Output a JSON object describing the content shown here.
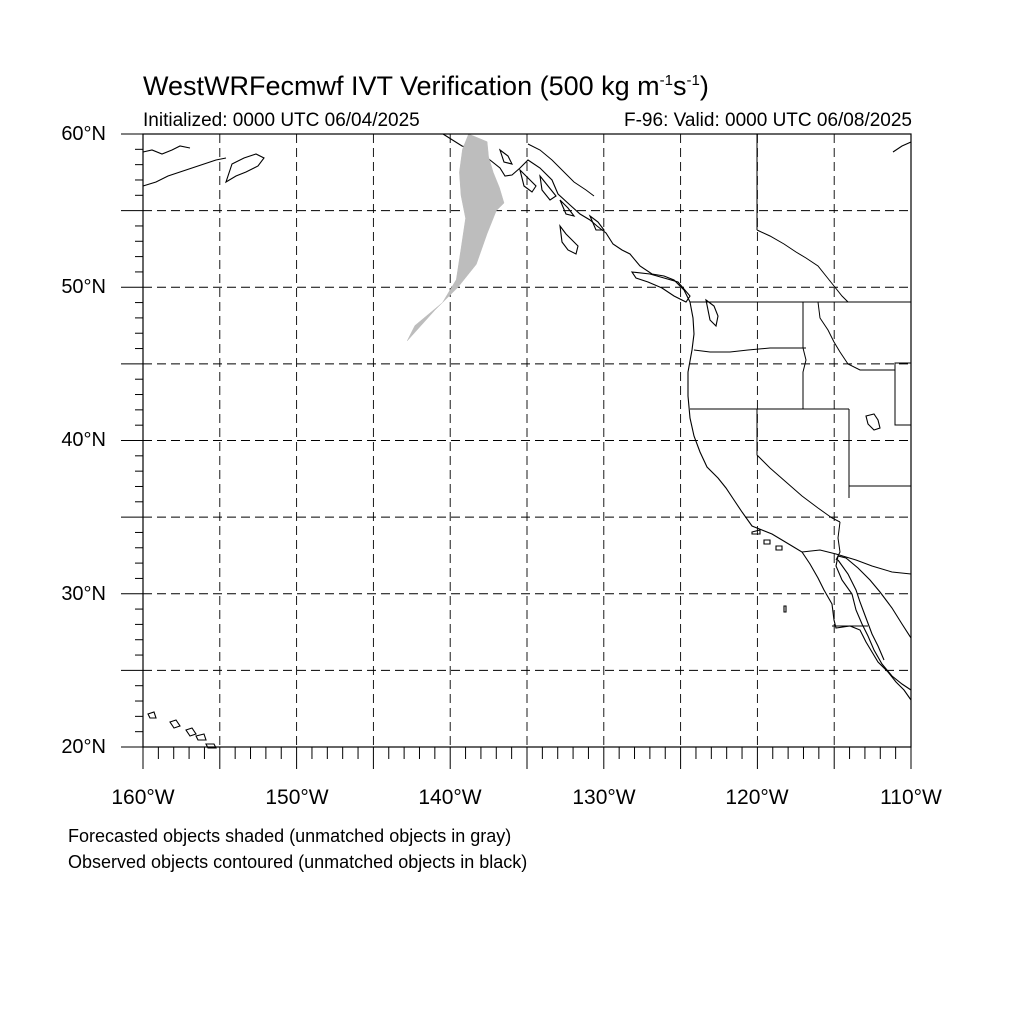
{
  "title": {
    "main": "WestWRFecmwf IVT Verification (500 kg m",
    "exp1": "-1",
    "mid": "s",
    "exp2": "-1",
    "end": ")"
  },
  "initialized": "Initialized: 0000 UTC 06/04/2025",
  "valid": "F-96: Valid: 0000 UTC 06/08/2025",
  "map": {
    "lon_range": [
      -160,
      -110
    ],
    "lat_range": [
      20,
      60
    ],
    "grid": "dashed every 5 degrees",
    "lat_labels": [
      "60°N",
      "50°N",
      "40°N",
      "30°N",
      "20°N"
    ],
    "lon_labels": [
      "160°W",
      "150°W",
      "140°W",
      "130°W",
      "120°W",
      "110°W"
    ],
    "forecast_object": {
      "status": "unmatched",
      "fill_color": "#bdbdbd",
      "outline": [
        [
          -138.8,
          60.0
        ],
        [
          -137.6,
          59.5
        ],
        [
          -137.5,
          58.5
        ],
        [
          -137.2,
          57.5
        ],
        [
          -136.8,
          56.5
        ],
        [
          -136.5,
          55.5
        ],
        [
          -137.0,
          55.0
        ],
        [
          -137.6,
          53.5
        ],
        [
          -138.3,
          51.5
        ],
        [
          -139.5,
          50.0
        ],
        [
          -141.0,
          48.5
        ],
        [
          -142.8,
          46.5
        ],
        [
          -142.3,
          47.5
        ],
        [
          -140.5,
          49.0
        ],
        [
          -139.6,
          50.5
        ],
        [
          -139.3,
          52.5
        ],
        [
          -139.0,
          54.5
        ],
        [
          -139.3,
          56.0
        ],
        [
          -139.4,
          57.5
        ],
        [
          -139.2,
          59.0
        ]
      ]
    }
  },
  "captions": {
    "forecast": "Forecasted objects shaded (unmatched objects in gray)",
    "observed": "Observed objects contoured (unmatched objects in black)"
  },
  "colors": {
    "forecast_unmatched": "#bdbdbd",
    "observed_unmatched": "#000000",
    "grid": "#000000"
  }
}
